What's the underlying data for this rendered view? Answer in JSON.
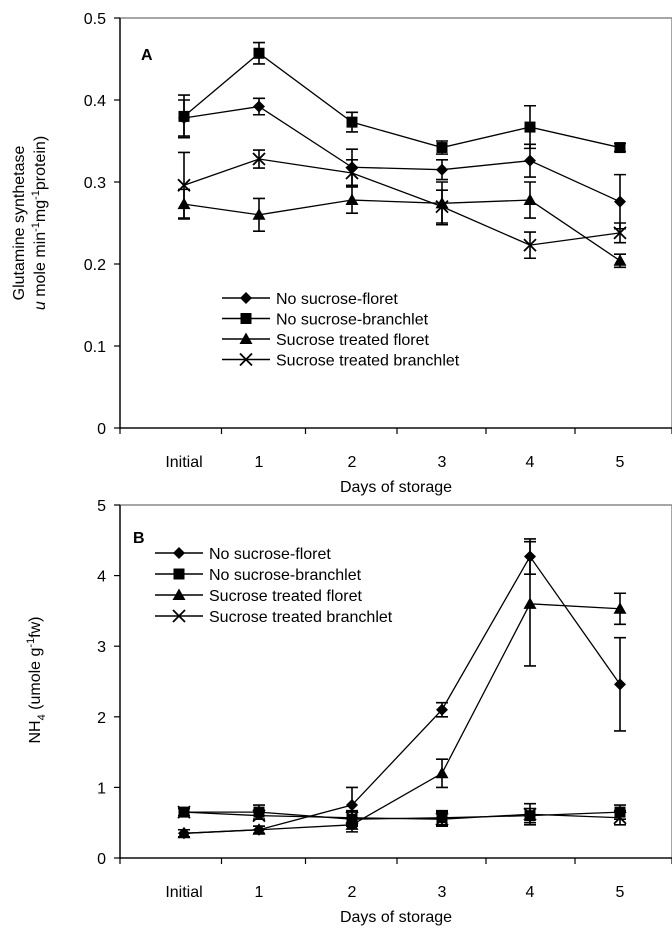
{
  "chart_data": [
    {
      "type": "line",
      "panel_label": "A",
      "xlabel": "Days of storage",
      "ylabel_line1": "Glutamine  synthetase",
      "ylabel_line2": "(u mole min-1mg-1protein)",
      "categories": [
        "Initial",
        "1",
        "2",
        "3",
        "4",
        "5"
      ],
      "ylim": [
        0,
        0.5
      ],
      "yticks": [
        "0",
        "0.1",
        "0.2",
        "0.3",
        "0.4",
        "0.5"
      ],
      "legend_position": "center-bottom",
      "series": [
        {
          "name": "No sucrose-floret",
          "marker": "diamond",
          "values": [
            0.378,
            0.392,
            0.318,
            0.315,
            0.326,
            0.276
          ],
          "errors": [
            0.022,
            0.01,
            0.022,
            0.012,
            0.02,
            0.033
          ]
        },
        {
          "name": "No sucrose-branchlet",
          "marker": "square",
          "values": [
            0.38,
            0.457,
            0.373,
            0.342,
            0.367,
            0.342
          ],
          "errors": [
            0.026,
            0.013,
            0.012,
            0.008,
            0.026,
            0.005
          ]
        },
        {
          "name": "Sucrose treated floret",
          "marker": "triangle",
          "values": [
            0.273,
            0.26,
            0.278,
            0.274,
            0.278,
            0.204
          ],
          "errors": [
            0.018,
            0.02,
            0.016,
            0.026,
            0.022,
            0.008
          ]
        },
        {
          "name": "Sucrose treated branchlet",
          "marker": "x",
          "values": [
            0.296,
            0.328,
            0.311,
            0.27,
            0.223,
            0.238
          ],
          "errors": [
            0.04,
            0.011,
            0.016,
            0.02,
            0.016,
            0.012
          ]
        }
      ]
    },
    {
      "type": "line",
      "panel_label": "B",
      "xlabel": "Days of storage",
      "ylabel": "NH4 (umole g-1fw)",
      "categories": [
        "Initial",
        "1",
        "2",
        "3",
        "4",
        "5"
      ],
      "ylim": [
        0,
        5
      ],
      "yticks": [
        "0",
        "1",
        "2",
        "3",
        "4",
        "5"
      ],
      "legend_position": "top-left",
      "series": [
        {
          "name": "No sucrose-floret",
          "marker": "diamond",
          "values": [
            0.35,
            0.4,
            0.75,
            2.1,
            4.27,
            2.46
          ],
          "errors": [
            0.05,
            0.05,
            0.25,
            0.1,
            0.25,
            0.66
          ]
        },
        {
          "name": "No sucrose-branchlet",
          "marker": "square",
          "values": [
            0.65,
            0.65,
            0.55,
            0.57,
            0.6,
            0.65
          ],
          "errors": [
            0.05,
            0.1,
            0.1,
            0.1,
            0.1,
            0.1
          ]
        },
        {
          "name": "Sucrose treated floret",
          "marker": "triangle",
          "values": [
            0.35,
            0.4,
            0.47,
            1.2,
            3.6,
            3.53
          ],
          "errors": [
            0.05,
            0.05,
            0.1,
            0.2,
            0.88,
            0.22
          ]
        },
        {
          "name": "Sucrose treated branchlet",
          "marker": "x",
          "values": [
            0.65,
            0.6,
            0.57,
            0.55,
            0.62,
            0.57
          ],
          "errors": [
            0.05,
            0.05,
            0.1,
            0.1,
            0.15,
            0.1
          ]
        }
      ]
    }
  ]
}
